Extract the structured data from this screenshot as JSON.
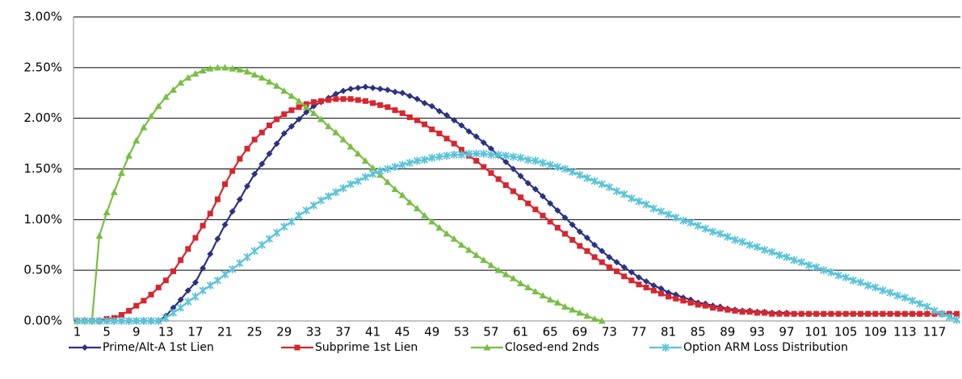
{
  "chart_data": {
    "type": "line",
    "categories": [
      1,
      null,
      null,
      null,
      5,
      null,
      null,
      null,
      9,
      null,
      null,
      null,
      13,
      null,
      null,
      null,
      17,
      null,
      null,
      null,
      21,
      null,
      null,
      null,
      25,
      null,
      null,
      null,
      29,
      null,
      null,
      null,
      33,
      null,
      null,
      null,
      37,
      null,
      null,
      null,
      41,
      null,
      null,
      null,
      45,
      null,
      null,
      null,
      49,
      null,
      null,
      null,
      53,
      null,
      null,
      null,
      57,
      null,
      null,
      null,
      61,
      null,
      null,
      null,
      65,
      null,
      null,
      null,
      69,
      null,
      null,
      null,
      73,
      null,
      null,
      null,
      77,
      null,
      null,
      null,
      81,
      null,
      null,
      null,
      85,
      null,
      null,
      null,
      89,
      null,
      null,
      null,
      93,
      null,
      null,
      null,
      97,
      null,
      null,
      null,
      101,
      null,
      null,
      null,
      105,
      null,
      null,
      null,
      109,
      null,
      null,
      null,
      113,
      null,
      null,
      null,
      117,
      null,
      null,
      null
    ],
    "series": [
      {
        "name": "Prime/Alt-A 1st Lien",
        "color": "#2b3280",
        "marker": "diamond",
        "values": [
          0,
          0,
          0,
          0,
          0,
          0,
          0,
          0,
          0,
          0,
          0,
          0,
          0.05,
          0.13,
          0.21,
          0.3,
          0.38,
          0.52,
          0.66,
          0.81,
          0.95,
          1.08,
          1.2,
          1.33,
          1.45,
          1.55,
          1.65,
          1.75,
          1.85,
          1.92,
          1.99,
          2.06,
          2.12,
          2.16,
          2.2,
          2.24,
          2.27,
          2.29,
          2.3,
          2.31,
          2.3,
          2.29,
          2.28,
          2.26,
          2.25,
          2.22,
          2.19,
          2.15,
          2.12,
          2.07,
          2.03,
          1.98,
          1.93,
          1.87,
          1.82,
          1.76,
          1.7,
          1.63,
          1.57,
          1.5,
          1.43,
          1.36,
          1.3,
          1.23,
          1.16,
          1.09,
          1.02,
          0.95,
          0.88,
          0.82,
          0.75,
          0.69,
          0.63,
          0.58,
          0.53,
          0.48,
          0.43,
          0.39,
          0.35,
          0.32,
          0.28,
          0.26,
          0.23,
          0.21,
          0.18,
          0.17,
          0.15,
          0.14,
          0.12,
          0.11,
          0.1,
          0.1,
          0.09,
          0.09,
          0.08,
          0.08,
          0.08,
          0.07,
          0.07,
          0.07,
          0.07,
          0.07,
          0.07,
          0.07,
          0.07,
          0.07,
          0.07,
          0.07,
          0.07,
          0.07,
          0.07,
          0.07,
          0.07,
          0.07,
          0.07,
          0.07,
          0.07,
          0.07,
          0.07,
          0.07
        ]
      },
      {
        "name": "Subprime 1st Lien",
        "color": "#d7262e",
        "marker": "square",
        "values": [
          0,
          0,
          0,
          0,
          0.02,
          0.03,
          0.06,
          0.1,
          0.15,
          0.2,
          0.26,
          0.33,
          0.4,
          0.49,
          0.6,
          0.71,
          0.82,
          0.94,
          1.06,
          1.2,
          1.35,
          1.48,
          1.6,
          1.7,
          1.79,
          1.86,
          1.93,
          1.99,
          2.04,
          2.08,
          2.11,
          2.14,
          2.16,
          2.17,
          2.18,
          2.19,
          2.19,
          2.19,
          2.18,
          2.17,
          2.15,
          2.13,
          2.11,
          2.08,
          2.05,
          2.01,
          1.98,
          1.94,
          1.89,
          1.85,
          1.8,
          1.75,
          1.69,
          1.63,
          1.58,
          1.52,
          1.46,
          1.4,
          1.34,
          1.28,
          1.22,
          1.16,
          1.1,
          1.04,
          0.98,
          0.92,
          0.86,
          0.8,
          0.74,
          0.69,
          0.63,
          0.58,
          0.53,
          0.49,
          0.44,
          0.4,
          0.36,
          0.33,
          0.3,
          0.27,
          0.24,
          0.22,
          0.2,
          0.18,
          0.16,
          0.15,
          0.13,
          0.12,
          0.11,
          0.1,
          0.09,
          0.09,
          0.08,
          0.08,
          0.07,
          0.07,
          0.07,
          0.07,
          0.07,
          0.07,
          0.07,
          0.07,
          0.07,
          0.07,
          0.07,
          0.07,
          0.07,
          0.07,
          0.07,
          0.07,
          0.07,
          0.07,
          0.07,
          0.07,
          0.07,
          0.07,
          0.07,
          0.07,
          0.07,
          0.07
        ]
      },
      {
        "name": "Closed-end 2nds",
        "color": "#78be43",
        "marker": "triangle",
        "values": [
          0,
          0,
          0,
          0.84,
          1.07,
          1.27,
          1.46,
          1.63,
          1.78,
          1.91,
          2.02,
          2.12,
          2.21,
          2.28,
          2.35,
          2.4,
          2.44,
          2.47,
          2.49,
          2.5,
          2.5,
          2.49,
          2.48,
          2.46,
          2.43,
          2.4,
          2.36,
          2.32,
          2.27,
          2.22,
          2.17,
          2.11,
          2.05,
          1.99,
          1.92,
          1.86,
          1.79,
          1.72,
          1.65,
          1.58,
          1.51,
          1.44,
          1.37,
          1.3,
          1.24,
          1.17,
          1.11,
          1.04,
          0.98,
          0.92,
          0.86,
          0.81,
          0.75,
          0.7,
          0.65,
          0.6,
          0.55,
          0.5,
          0.46,
          0.42,
          0.37,
          0.33,
          0.29,
          0.25,
          0.21,
          0.18,
          0.14,
          0.11,
          0.08,
          0.05,
          0.02,
          0,
          null,
          null,
          null,
          null,
          null,
          null,
          null,
          null,
          null,
          null,
          null,
          null,
          null,
          null,
          null,
          null,
          null,
          null,
          null,
          null,
          null,
          null,
          null,
          null,
          null,
          null,
          null,
          null,
          null,
          null,
          null,
          null,
          null,
          null,
          null,
          null,
          null,
          null,
          null,
          null,
          null,
          null,
          null,
          null,
          null,
          null,
          null,
          null
        ]
      },
      {
        "name": "Option ARM Loss Distribution",
        "color": "#5bc3d8",
        "marker": "star",
        "values": [
          0,
          0,
          0,
          0,
          0,
          0,
          0,
          0,
          0,
          0,
          0,
          0,
          0.03,
          0.08,
          0.13,
          0.19,
          0.24,
          0.3,
          0.35,
          0.4,
          0.46,
          0.51,
          0.57,
          0.63,
          0.69,
          0.75,
          0.81,
          0.87,
          0.93,
          0.98,
          1.04,
          1.09,
          1.14,
          1.19,
          1.23,
          1.27,
          1.31,
          1.35,
          1.38,
          1.42,
          1.45,
          1.48,
          1.5,
          1.52,
          1.54,
          1.56,
          1.58,
          1.59,
          1.61,
          1.62,
          1.63,
          1.64,
          1.64,
          1.65,
          1.65,
          1.65,
          1.64,
          1.64,
          1.63,
          1.62,
          1.61,
          1.59,
          1.58,
          1.56,
          1.54,
          1.52,
          1.5,
          1.47,
          1.44,
          1.41,
          1.38,
          1.35,
          1.32,
          1.28,
          1.25,
          1.21,
          1.18,
          1.15,
          1.11,
          1.08,
          1.05,
          1.02,
          0.99,
          0.97,
          0.94,
          0.91,
          0.88,
          0.86,
          0.83,
          0.8,
          0.78,
          0.75,
          0.73,
          0.7,
          0.68,
          0.65,
          0.63,
          0.6,
          0.58,
          0.55,
          0.53,
          0.5,
          0.48,
          0.45,
          0.43,
          0.4,
          0.38,
          0.35,
          0.33,
          0.3,
          0.28,
          0.25,
          0.23,
          0.2,
          0.17,
          0.14,
          0.1,
          0.07,
          0.04,
          0.01
        ]
      }
    ],
    "ylim": [
      0,
      3
    ],
    "yticks": [
      {
        "value": 0,
        "label": "0.00%"
      },
      {
        "value": 0.5,
        "label": "0.50%"
      },
      {
        "value": 1,
        "label": "1.00%"
      },
      {
        "value": 1.5,
        "label": "1.50%"
      },
      {
        "value": 2,
        "label": "2.00%"
      },
      {
        "value": 2.5,
        "label": "2.50%"
      },
      {
        "value": 3,
        "label": "3.00%"
      }
    ],
    "grid": true,
    "legend": "bottom"
  }
}
